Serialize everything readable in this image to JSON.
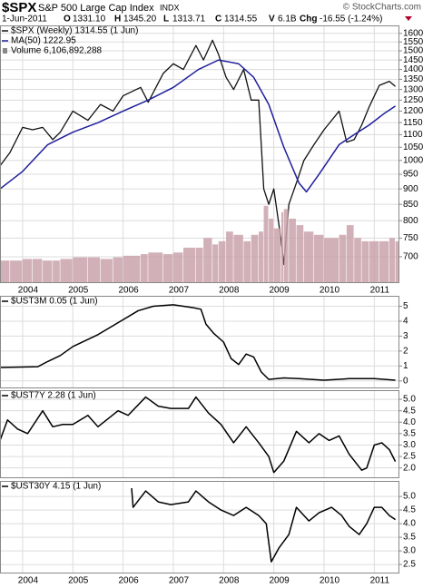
{
  "header": {
    "symbol": "$SPX",
    "name": "S&P 500 Large Cap Index",
    "exchange": "INDX",
    "date": "1-Jun-2011",
    "stats": [
      {
        "label": "O",
        "value": "1331.10"
      },
      {
        "label": "H",
        "value": "1345.20"
      },
      {
        "label": "L",
        "value": "1313.71"
      },
      {
        "label": "C",
        "value": "1314.55"
      },
      {
        "label": "V",
        "value": "6.1B"
      },
      {
        "label": "Chg",
        "value": "-16.55 (-1.24%)"
      }
    ],
    "copyright": "© StockCharts.com"
  },
  "chart_data": [
    {
      "type": "line",
      "log": true,
      "grid": true,
      "x_tick_labels": true,
      "xlim": [
        2003.55,
        2011.5
      ],
      "xticks": [
        2004,
        2005,
        2006,
        2007,
        2008,
        2009,
        2010,
        2011
      ],
      "ylim": [
        635,
        1648
      ],
      "yticks": [
        700,
        750,
        800,
        850,
        900,
        950,
        1000,
        1050,
        1100,
        1150,
        1200,
        1250,
        1300,
        1350,
        1400,
        1450,
        1500,
        1550,
        1600
      ],
      "y2lim": [
        0,
        80000000000
      ],
      "series": [
        {
          "name": "$SPX (Weekly) 1314.55 (1 Jun)",
          "color": "#111111",
          "x": [
            2003.55,
            2003.75,
            2004.0,
            2004.2,
            2004.4,
            2004.6,
            2004.75,
            2005.0,
            2005.3,
            2005.55,
            2005.8,
            2006.0,
            2006.35,
            2006.5,
            2006.8,
            2007.0,
            2007.2,
            2007.45,
            2007.6,
            2007.78,
            2007.9,
            2008.05,
            2008.2,
            2008.4,
            2008.55,
            2008.7,
            2008.8,
            2008.9,
            2009.0,
            2009.15,
            2009.2,
            2009.3,
            2009.45,
            2009.6,
            2009.8,
            2010.0,
            2010.3,
            2010.45,
            2010.6,
            2010.75,
            2010.9,
            2011.1,
            2011.3,
            2011.42
          ],
          "values": [
            980,
            1030,
            1130,
            1120,
            1130,
            1080,
            1110,
            1200,
            1160,
            1230,
            1200,
            1270,
            1310,
            1240,
            1380,
            1430,
            1400,
            1530,
            1450,
            1560,
            1480,
            1360,
            1300,
            1400,
            1250,
            1250,
            900,
            850,
            900,
            740,
            680,
            850,
            920,
            1000,
            1060,
            1120,
            1200,
            1070,
            1080,
            1140,
            1220,
            1320,
            1340,
            1315
          ]
        },
        {
          "name": "MA(50) 1222.95",
          "color": "#1f1f9a",
          "x": [
            2003.55,
            2004.0,
            2004.5,
            2005.0,
            2005.5,
            2006.0,
            2006.5,
            2007.0,
            2007.5,
            2007.9,
            2008.3,
            2008.6,
            2008.9,
            2009.2,
            2009.5,
            2009.65,
            2009.9,
            2010.3,
            2010.6,
            2010.9,
            2011.2,
            2011.42
          ],
          "values": [
            900,
            960,
            1060,
            1110,
            1150,
            1200,
            1250,
            1310,
            1400,
            1450,
            1430,
            1360,
            1230,
            1050,
            920,
            890,
            950,
            1060,
            1100,
            1140,
            1190,
            1223
          ]
        },
        {
          "name": "Volume 6,106,892,288",
          "color": "#c9a3aa",
          "axis": "y2",
          "type": "bar",
          "x": [
            2003.55,
            2003.75,
            2004.0,
            2004.2,
            2004.4,
            2004.6,
            2004.75,
            2005.0,
            2005.3,
            2005.55,
            2005.8,
            2006.0,
            2006.35,
            2006.5,
            2006.8,
            2007.0,
            2007.2,
            2007.45,
            2007.6,
            2007.78,
            2007.9,
            2008.05,
            2008.2,
            2008.4,
            2008.55,
            2008.7,
            2008.8,
            2008.9,
            2009.0,
            2009.15,
            2009.2,
            2009.3,
            2009.45,
            2009.6,
            2009.8,
            2010.0,
            2010.3,
            2010.45,
            2010.6,
            2010.75,
            2010.9,
            2011.1,
            2011.3,
            2011.42
          ],
          "values": [
            7000000000.0,
            7000000000.0,
            7500000000.0,
            7500000000.0,
            7000000000.0,
            7000000000.0,
            7500000000.0,
            8000000000.0,
            8000000000.0,
            7500000000.0,
            8000000000.0,
            8500000000.0,
            9000000000.0,
            9500000000.0,
            9000000000.0,
            9500000000.0,
            11000000000.0,
            11000000000.0,
            14000000000.0,
            12000000000.0,
            13000000000.0,
            16000000000.0,
            15000000000.0,
            13000000000.0,
            15000000000.0,
            16000000000.0,
            24000000000.0,
            20000000000.0,
            17000000000.0,
            22000000000.0,
            23000000000.0,
            20000000000.0,
            18000000000.0,
            16000000000.0,
            15000000000.0,
            14000000000.0,
            15000000000.0,
            18000000000.0,
            14000000000.0,
            13000000000.0,
            13000000000.0,
            13000000000.0,
            14000000000.0,
            13000000000.0
          ]
        }
      ]
    },
    {
      "type": "line",
      "grid": true,
      "x_tick_labels": false,
      "xlim": [
        2003.55,
        2011.5
      ],
      "xticks": [
        2004,
        2005,
        2006,
        2007,
        2008,
        2009,
        2010,
        2011
      ],
      "ylim": [
        -0.5,
        5.7
      ],
      "yticks": [
        0,
        1,
        2,
        3,
        4,
        5
      ],
      "series": [
        {
          "name": "$UST3M 0.05 (1 Jun)",
          "color": "#000000",
          "x": [
            2003.55,
            2004.3,
            2004.5,
            2004.75,
            2005.0,
            2005.5,
            2005.9,
            2006.3,
            2006.6,
            2007.0,
            2007.4,
            2007.55,
            2007.65,
            2007.8,
            2008.0,
            2008.15,
            2008.3,
            2008.45,
            2008.6,
            2008.75,
            2008.9,
            2009.2,
            2009.5,
            2010.0,
            2010.5,
            2011.0,
            2011.42
          ],
          "values": [
            0.9,
            0.95,
            1.3,
            1.7,
            2.3,
            3.1,
            3.9,
            4.7,
            5.0,
            5.1,
            4.9,
            4.8,
            3.8,
            3.2,
            2.6,
            1.5,
            1.1,
            1.8,
            1.6,
            0.6,
            0.1,
            0.2,
            0.15,
            0.05,
            0.15,
            0.15,
            0.05
          ]
        }
      ]
    },
    {
      "type": "line",
      "grid": true,
      "x_tick_labels": false,
      "xlim": [
        2003.55,
        2011.5
      ],
      "xticks": [
        2004,
        2005,
        2006,
        2007,
        2008,
        2009,
        2010,
        2011
      ],
      "ylim": [
        1.55,
        5.4
      ],
      "yticks": [
        {
          "value": 2,
          "label": "2.0"
        },
        2.5,
        {
          "value": 3,
          "label": "3.0"
        },
        3.5,
        {
          "value": 4,
          "label": "4.0"
        },
        4.5,
        {
          "value": 5,
          "label": "5.0"
        }
      ],
      "series": [
        {
          "name": "$UST7Y 2.28 (1 Jun)",
          "color": "#000000",
          "x": [
            2003.55,
            2003.7,
            2003.9,
            2004.1,
            2004.4,
            2004.6,
            2004.8,
            2005.0,
            2005.3,
            2005.5,
            2005.9,
            2006.1,
            2006.45,
            2006.7,
            2006.95,
            2007.3,
            2007.45,
            2007.7,
            2007.95,
            2008.2,
            2008.45,
            2008.7,
            2008.9,
            2009.0,
            2009.2,
            2009.45,
            2009.7,
            2009.9,
            2010.1,
            2010.3,
            2010.5,
            2010.75,
            2010.85,
            2011.0,
            2011.15,
            2011.3,
            2011.42
          ],
          "values": [
            3.2,
            4.1,
            3.7,
            3.5,
            4.5,
            3.8,
            3.9,
            3.9,
            4.3,
            3.8,
            4.5,
            4.3,
            5.1,
            4.7,
            4.6,
            4.6,
            5.1,
            4.4,
            3.9,
            3.1,
            3.8,
            3.1,
            2.5,
            1.8,
            2.3,
            3.6,
            3.1,
            3.5,
            3.2,
            3.4,
            2.6,
            1.9,
            2.0,
            3.0,
            3.1,
            2.8,
            2.28
          ]
        }
      ]
    },
    {
      "type": "line",
      "grid": true,
      "x_tick_labels": true,
      "xlim": [
        2003.55,
        2011.5
      ],
      "xticks": [
        2004,
        2005,
        2006,
        2007,
        2008,
        2009,
        2010,
        2011
      ],
      "ylim": [
        2.17,
        5.57
      ],
      "yticks": [
        2.5,
        {
          "value": 3,
          "label": "3.0"
        },
        3.5,
        {
          "value": 4,
          "label": "4.0"
        },
        4.5,
        {
          "value": 5,
          "label": "5.0"
        }
      ],
      "series": [
        {
          "name": "$UST30Y 4.15 (1 Jun)",
          "color": "#000000",
          "x": [
            2006.17,
            2006.2,
            2006.45,
            2006.7,
            2006.95,
            2007.3,
            2007.45,
            2007.7,
            2007.95,
            2008.2,
            2008.45,
            2008.7,
            2008.85,
            2008.95,
            2009.1,
            2009.3,
            2009.45,
            2009.7,
            2009.9,
            2010.15,
            2010.35,
            2010.5,
            2010.7,
            2010.85,
            2011.0,
            2011.15,
            2011.3,
            2011.42
          ],
          "values": [
            5.3,
            4.6,
            5.2,
            4.8,
            4.7,
            4.8,
            5.2,
            4.8,
            4.5,
            4.3,
            4.6,
            4.3,
            4.0,
            2.6,
            3.1,
            3.6,
            4.6,
            4.1,
            4.4,
            4.6,
            4.3,
            3.9,
            3.6,
            4.0,
            4.6,
            4.6,
            4.3,
            4.15
          ]
        }
      ]
    }
  ]
}
